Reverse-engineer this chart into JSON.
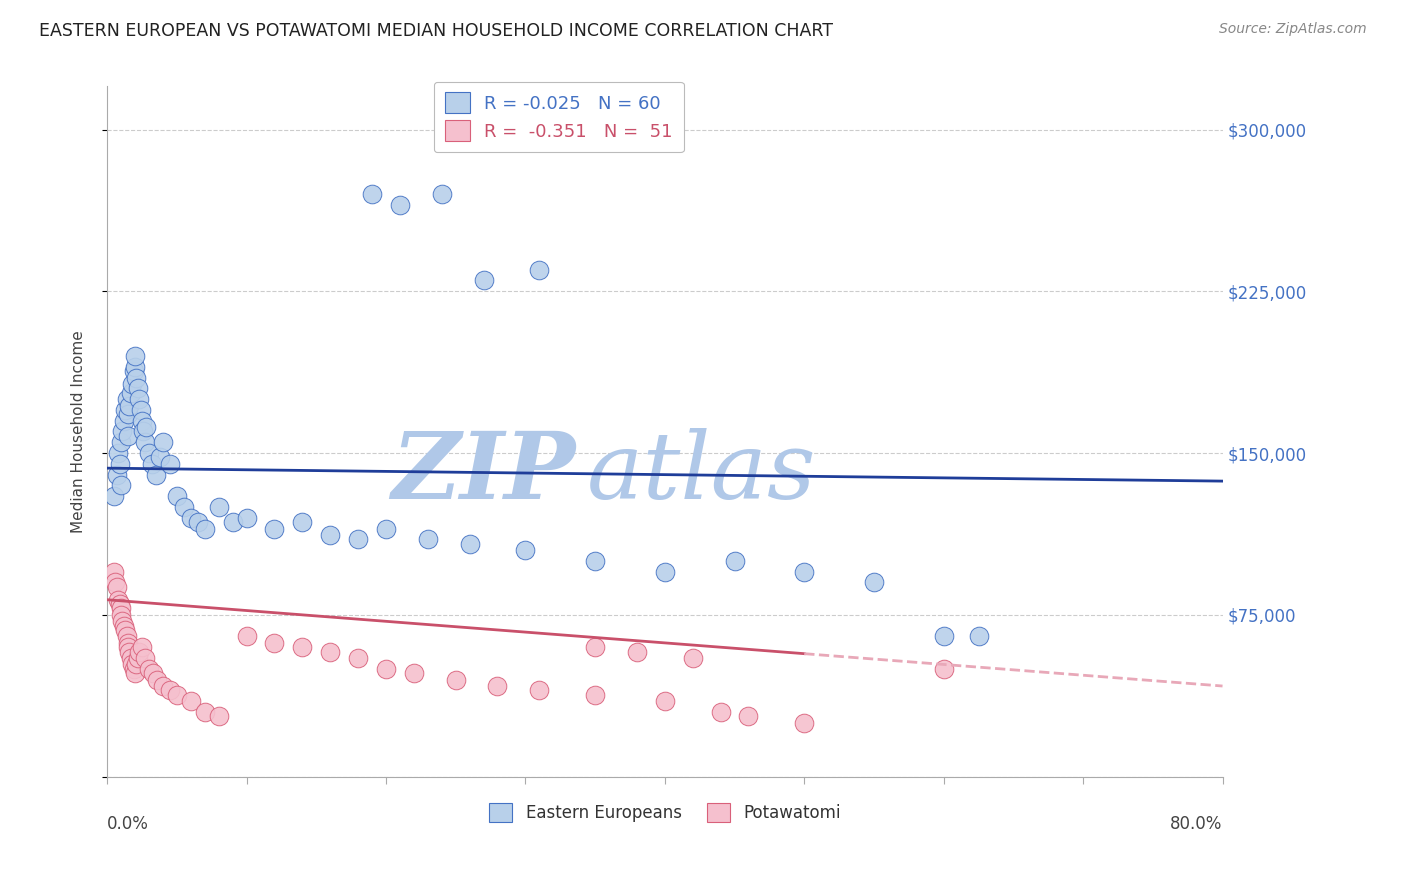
{
  "title": "EASTERN EUROPEAN VS POTAWATOMI MEDIAN HOUSEHOLD INCOME CORRELATION CHART",
  "source": "Source: ZipAtlas.com",
  "ylabel": "Median Household Income",
  "yticks": [
    0,
    75000,
    150000,
    225000,
    300000
  ],
  "ytick_labels": [
    "",
    "$75,000",
    "$150,000",
    "$225,000",
    "$300,000"
  ],
  "xlim": [
    0.0,
    0.8
  ],
  "ylim": [
    0,
    320000
  ],
  "legend_blue_label": "R = -0.025   N = 60",
  "legend_pink_label": "R =  -0.351   N =  51",
  "blue_scatter_x": [
    0.005,
    0.007,
    0.008,
    0.009,
    0.01,
    0.01,
    0.011,
    0.012,
    0.013,
    0.014,
    0.015,
    0.015,
    0.016,
    0.017,
    0.018,
    0.019,
    0.02,
    0.02,
    0.021,
    0.022,
    0.023,
    0.024,
    0.025,
    0.026,
    0.027,
    0.028,
    0.03,
    0.032,
    0.035,
    0.038,
    0.04,
    0.045,
    0.05,
    0.055,
    0.06,
    0.065,
    0.07,
    0.08,
    0.09,
    0.1,
    0.12,
    0.14,
    0.16,
    0.18,
    0.2,
    0.23,
    0.26,
    0.3,
    0.35,
    0.4,
    0.45,
    0.5,
    0.55,
    0.6,
    0.625,
    0.19,
    0.21,
    0.24,
    0.27,
    0.31
  ],
  "blue_scatter_y": [
    130000,
    140000,
    150000,
    145000,
    135000,
    155000,
    160000,
    165000,
    170000,
    175000,
    158000,
    168000,
    172000,
    178000,
    182000,
    188000,
    190000,
    195000,
    185000,
    180000,
    175000,
    170000,
    165000,
    160000,
    155000,
    162000,
    150000,
    145000,
    140000,
    148000,
    155000,
    145000,
    130000,
    125000,
    120000,
    118000,
    115000,
    125000,
    118000,
    120000,
    115000,
    118000,
    112000,
    110000,
    115000,
    110000,
    108000,
    105000,
    100000,
    95000,
    100000,
    95000,
    90000,
    65000,
    65000,
    270000,
    265000,
    270000,
    230000,
    235000
  ],
  "pink_scatter_x": [
    0.005,
    0.006,
    0.007,
    0.008,
    0.009,
    0.01,
    0.01,
    0.011,
    0.012,
    0.013,
    0.014,
    0.015,
    0.015,
    0.016,
    0.017,
    0.018,
    0.019,
    0.02,
    0.021,
    0.022,
    0.023,
    0.025,
    0.027,
    0.03,
    0.033,
    0.036,
    0.04,
    0.045,
    0.05,
    0.06,
    0.07,
    0.08,
    0.1,
    0.12,
    0.14,
    0.16,
    0.18,
    0.2,
    0.22,
    0.25,
    0.28,
    0.31,
    0.35,
    0.4,
    0.44,
    0.46,
    0.5,
    0.35,
    0.38,
    0.42,
    0.6
  ],
  "pink_scatter_y": [
    95000,
    90000,
    88000,
    82000,
    80000,
    78000,
    75000,
    72000,
    70000,
    68000,
    65000,
    62000,
    60000,
    58000,
    55000,
    52000,
    50000,
    48000,
    52000,
    55000,
    58000,
    60000,
    55000,
    50000,
    48000,
    45000,
    42000,
    40000,
    38000,
    35000,
    30000,
    28000,
    65000,
    62000,
    60000,
    58000,
    55000,
    50000,
    48000,
    45000,
    42000,
    40000,
    38000,
    35000,
    30000,
    28000,
    25000,
    60000,
    58000,
    55000,
    50000
  ],
  "blue_color": "#b8d0ea",
  "blue_edge_color": "#4472c4",
  "pink_color": "#f5c0ce",
  "pink_edge_color": "#d9607a",
  "trend_blue_color": "#1f3d99",
  "trend_pink_solid_color": "#c9506a",
  "trend_pink_dashed_color": "#e8a8b8",
  "watermark_zip_color": "#b0c8e8",
  "watermark_atlas_color": "#b0c8e8",
  "background_color": "#ffffff",
  "grid_color": "#cccccc",
  "right_tick_color": "#4472c4"
}
